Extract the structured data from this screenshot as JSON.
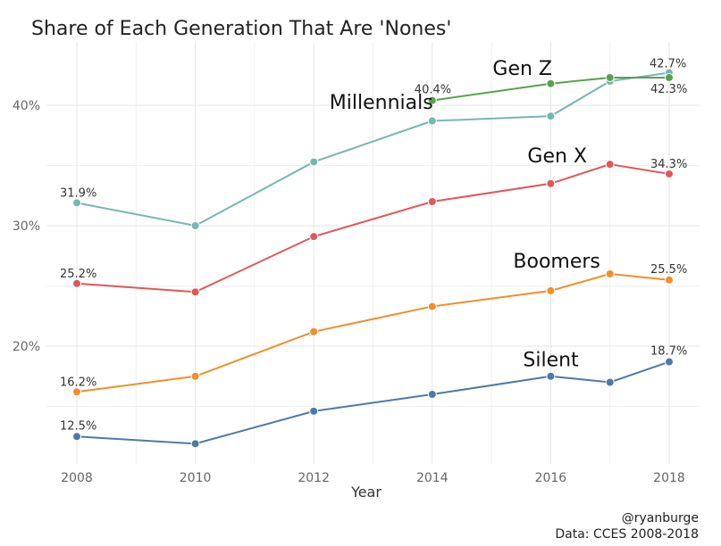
{
  "title": "Share of Each Generation That Are 'Nones'",
  "caption": {
    "line1": "@ryanburge",
    "line2": "Data: CCES 2008-2018"
  },
  "chart_data": {
    "type": "line",
    "title": "Share of Each Generation That Are 'Nones'",
    "xlabel": "Year",
    "ylabel": "",
    "x_ticks": [
      2008,
      2010,
      2012,
      2014,
      2016,
      2018
    ],
    "y_ticks": [
      20,
      30,
      40
    ],
    "y_tick_labels": [
      "20%",
      "30%",
      "40%"
    ],
    "xlim": [
      2008,
      2018
    ],
    "ylim": [
      10,
      45
    ],
    "grid": true,
    "series": [
      {
        "name": "Silent",
        "color": "#4E79A7",
        "points": [
          {
            "x": 2008,
            "y": 12.5
          },
          {
            "x": 2010,
            "y": 11.9
          },
          {
            "x": 2012,
            "y": 14.6
          },
          {
            "x": 2014,
            "y": 16.0
          },
          {
            "x": 2016,
            "y": 17.5
          },
          {
            "x": 2017,
            "y": 17.0
          },
          {
            "x": 2018,
            "y": 18.7
          }
        ],
        "labels": [
          {
            "x": 2008,
            "y": 12.5,
            "text": "12.5%"
          },
          {
            "x": 2018,
            "y": 18.7,
            "text": "18.7%"
          }
        ]
      },
      {
        "name": "Boomers",
        "color": "#F28E2B",
        "points": [
          {
            "x": 2008,
            "y": 16.2
          },
          {
            "x": 2010,
            "y": 17.5
          },
          {
            "x": 2012,
            "y": 21.2
          },
          {
            "x": 2014,
            "y": 23.3
          },
          {
            "x": 2016,
            "y": 24.6
          },
          {
            "x": 2017,
            "y": 26.0
          },
          {
            "x": 2018,
            "y": 25.5
          }
        ],
        "labels": [
          {
            "x": 2008,
            "y": 16.2,
            "text": "16.2%"
          },
          {
            "x": 2018,
            "y": 25.5,
            "text": "25.5%"
          }
        ]
      },
      {
        "name": "Gen X",
        "color": "#E15759",
        "points": [
          {
            "x": 2008,
            "y": 25.2
          },
          {
            "x": 2010,
            "y": 24.5
          },
          {
            "x": 2012,
            "y": 29.1
          },
          {
            "x": 2014,
            "y": 32.0
          },
          {
            "x": 2016,
            "y": 33.5
          },
          {
            "x": 2017,
            "y": 35.1
          },
          {
            "x": 2018,
            "y": 34.3
          }
        ],
        "labels": [
          {
            "x": 2008,
            "y": 25.2,
            "text": "25.2%"
          },
          {
            "x": 2018,
            "y": 34.3,
            "text": "34.3%"
          }
        ]
      },
      {
        "name": "Millennials",
        "color": "#76B7B2",
        "points": [
          {
            "x": 2008,
            "y": 31.9
          },
          {
            "x": 2010,
            "y": 30.0
          },
          {
            "x": 2012,
            "y": 35.3
          },
          {
            "x": 2014,
            "y": 38.7
          },
          {
            "x": 2016,
            "y": 39.1
          },
          {
            "x": 2017,
            "y": 42.0
          },
          {
            "x": 2018,
            "y": 42.7
          }
        ],
        "labels": [
          {
            "x": 2008,
            "y": 31.9,
            "text": "31.9%"
          },
          {
            "x": 2018,
            "y": 42.7,
            "text": "42.7%"
          }
        ]
      },
      {
        "name": "Gen Z",
        "color": "#59A14F",
        "points": [
          {
            "x": 2014,
            "y": 40.4
          },
          {
            "x": 2016,
            "y": 41.8
          },
          {
            "x": 2017,
            "y": 42.3
          },
          {
            "x": 2018,
            "y": 42.3
          }
        ],
        "labels": [
          {
            "x": 2014,
            "y": 40.4,
            "text": "40.4%"
          },
          {
            "x": 2018,
            "y": 42.3,
            "text": "42.3%"
          }
        ]
      }
    ],
    "series_labels": [
      {
        "series": "Gen Z",
        "text": "Gen Z",
        "x": 2016,
        "y": 42.0
      },
      {
        "series": "Millennials",
        "text": "Millennials",
        "x": 2014,
        "y": 39.2
      },
      {
        "series": "Gen X",
        "text": "Gen X",
        "x": 2016,
        "y": 34.8
      },
      {
        "series": "Boomers",
        "text": "Boomers",
        "x": 2016,
        "y": 26.0
      },
      {
        "series": "Silent",
        "text": "Silent",
        "x": 2016,
        "y": 17.8
      }
    ]
  }
}
